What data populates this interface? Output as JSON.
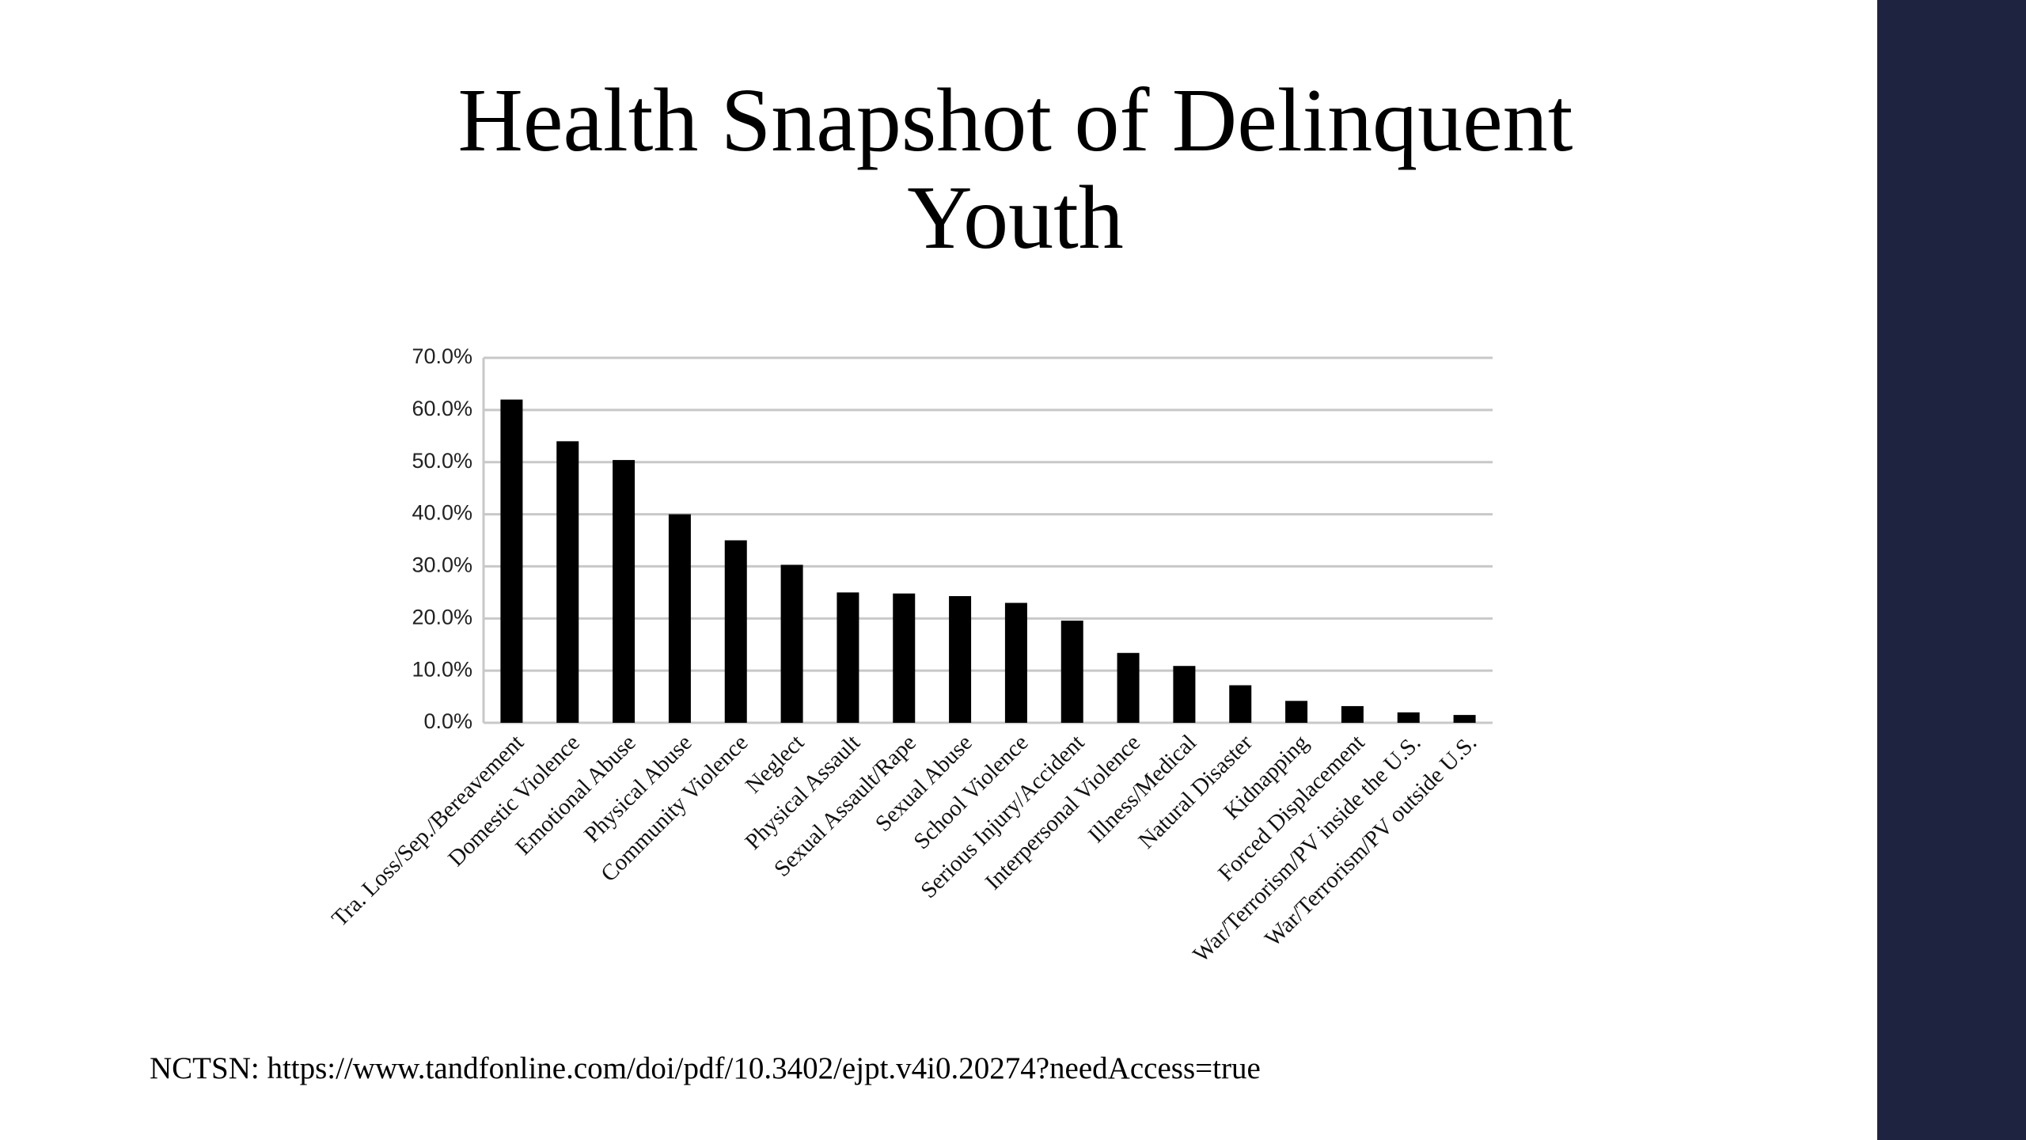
{
  "chart_data": {
    "type": "bar",
    "title": "Health Snapshot of Delinquent Youth",
    "source": "NCTSN: https://www.tandfonline.com/doi/pdf/10.3402/ejpt.v4i0.20274?needAccess=true",
    "categories": [
      "Tra. Loss/Sep./Bereavement",
      "Domestic Violence",
      "Emotional Abuse",
      "Physical Abuse",
      "Community Violence",
      "Neglect",
      "Physical Assault",
      "Sexual Assault/Rape",
      "Sexual Abuse",
      "School Violence",
      "Serious Injury/Accident",
      "Interpersonal Violence",
      "Illness/Medical",
      "Natural Disaster",
      "Kidnapping",
      "Forced Displacement",
      "War/Terrorism/PV inside the U.S.",
      "War/Terrorism/PV outside U.S."
    ],
    "values": [
      62,
      54,
      50.4,
      40,
      35,
      30.3,
      25,
      24.8,
      24.3,
      23,
      19.6,
      13.4,
      10.9,
      7.2,
      4.2,
      3.2,
      2,
      1.5
    ],
    "color": "#000000",
    "ylim": [
      0,
      70
    ],
    "yticks": [
      {
        "value": 0,
        "label": "0.0%"
      },
      {
        "value": 10,
        "label": "10.0%"
      },
      {
        "value": 20,
        "label": "20.0%"
      },
      {
        "value": 30,
        "label": "30.0%"
      },
      {
        "value": 40,
        "label": "40.0%"
      },
      {
        "value": 50,
        "label": "50.0%"
      },
      {
        "value": 60,
        "label": "60.0%"
      },
      {
        "value": 70,
        "label": "70.0%"
      }
    ],
    "grid": true
  }
}
